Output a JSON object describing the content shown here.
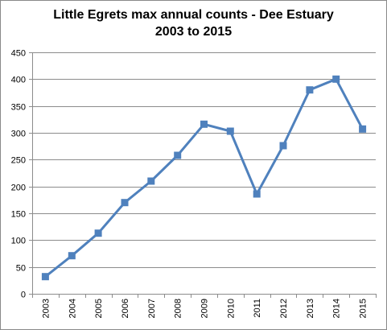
{
  "chart_data": {
    "type": "line",
    "title_line1": "Little Egrets max annual counts - Dee Estuary",
    "title_line2": "2003 to 2015",
    "xlabel": "",
    "ylabel": "",
    "categories": [
      "2003",
      "2004",
      "2005",
      "2006",
      "2007",
      "2008",
      "2009",
      "2010",
      "2011",
      "2012",
      "2013",
      "2014",
      "2015"
    ],
    "series": [
      {
        "values": [
          32,
          71,
          113,
          170,
          210,
          258,
          316,
          303,
          186,
          276,
          380,
          400,
          307
        ]
      }
    ],
    "ylim": [
      0,
      450
    ],
    "yticks": [
      0,
      50,
      100,
      150,
      200,
      250,
      300,
      350,
      400,
      450
    ],
    "grid": "horizontal",
    "legend": "none",
    "colors": {
      "line": "#4f81bd",
      "marker": "#4f81bd",
      "grid": "#8c8c8c",
      "axis": "#8c8c8c"
    }
  }
}
